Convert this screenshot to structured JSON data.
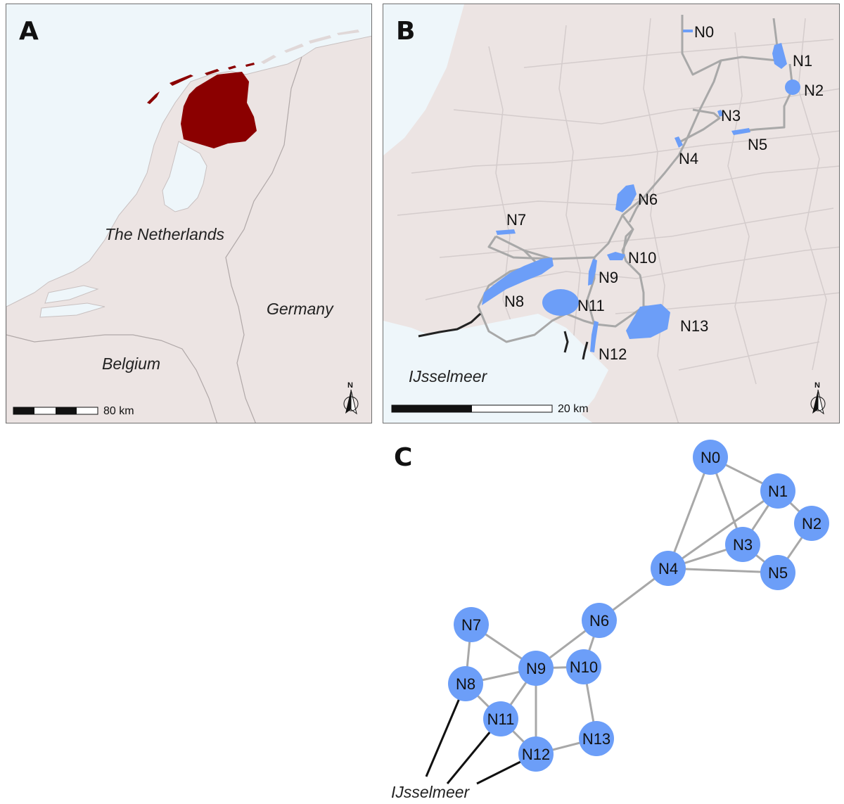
{
  "panel_a": {
    "letter": "A",
    "labels": {
      "netherlands": "The Netherlands",
      "germany": "Germany",
      "belgium": "Belgium"
    },
    "scale_label": "80 km",
    "north": "N",
    "colors": {
      "water": "#eef6fa",
      "land": "#ece4e3",
      "highlight": "#8b0000",
      "border": "#b0a8a8"
    }
  },
  "panel_b": {
    "letter": "B",
    "water_label": "IJsselmeer",
    "scale_label": "20 km",
    "north": "N",
    "nodes": [
      "N0",
      "N1",
      "N2",
      "N3",
      "N4",
      "N5",
      "N6",
      "N7",
      "N8",
      "N9",
      "N10",
      "N11",
      "N12",
      "N13"
    ],
    "colors": {
      "habitat": "#6c9ef8",
      "route": "#a8a8a8",
      "barrier": "#222222",
      "roads": "#d4cccc"
    }
  },
  "panel_c": {
    "letter": "C",
    "external_label": "IJsselmeer",
    "nodes": [
      "N0",
      "N1",
      "N2",
      "N3",
      "N4",
      "N5",
      "N6",
      "N7",
      "N8",
      "N9",
      "N10",
      "N11",
      "N12",
      "N13"
    ],
    "edges": [
      [
        "N0",
        "N1"
      ],
      [
        "N0",
        "N3"
      ],
      [
        "N0",
        "N4"
      ],
      [
        "N1",
        "N2"
      ],
      [
        "N1",
        "N3"
      ],
      [
        "N1",
        "N4"
      ],
      [
        "N2",
        "N5"
      ],
      [
        "N3",
        "N4"
      ],
      [
        "N3",
        "N5"
      ],
      [
        "N4",
        "N5"
      ],
      [
        "N4",
        "N6"
      ],
      [
        "N6",
        "N9"
      ],
      [
        "N6",
        "N10"
      ],
      [
        "N7",
        "N8"
      ],
      [
        "N7",
        "N9"
      ],
      [
        "N8",
        "N9"
      ],
      [
        "N8",
        "N11"
      ],
      [
        "N9",
        "N10"
      ],
      [
        "N9",
        "N11"
      ],
      [
        "N9",
        "N12"
      ],
      [
        "N10",
        "N13"
      ],
      [
        "N11",
        "N12"
      ],
      [
        "N12",
        "N13"
      ]
    ],
    "external_edges": [
      "N8",
      "N11",
      "N12"
    ],
    "colors": {
      "node": "#6c9ef8",
      "edge": "#a8a8a8",
      "external_edge": "#111111"
    }
  }
}
